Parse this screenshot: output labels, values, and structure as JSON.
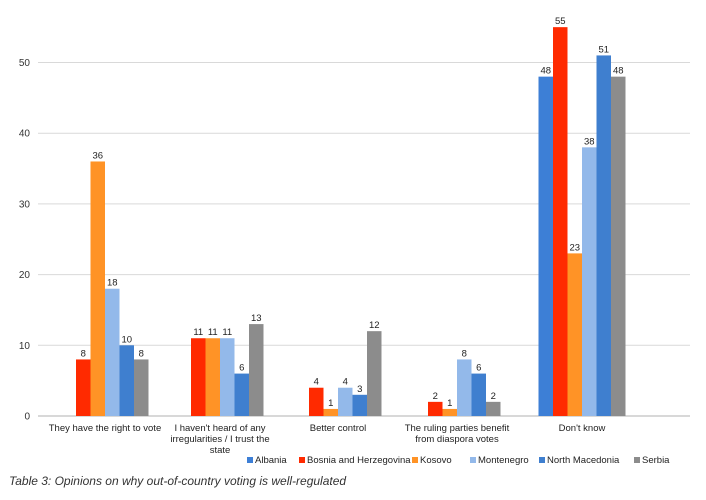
{
  "caption": "Table 3: Opinions on why out-of-country voting is well-regulated",
  "chart_data": {
    "type": "bar",
    "title": "",
    "xlabel": "",
    "ylabel": "",
    "ylim": [
      0,
      57
    ],
    "yticks": [
      0,
      10,
      20,
      30,
      40,
      50
    ],
    "grid": true,
    "legend_position": "bottom-right",
    "categories": [
      [
        "They have the right to vote"
      ],
      [
        "I haven't heard of any",
        "irregularities / I trust the",
        "state"
      ],
      [
        "Better control"
      ],
      [
        "The ruling parties benefit",
        "from diaspora votes"
      ],
      [
        "Don't know"
      ]
    ],
    "series": [
      {
        "name": "Albania",
        "color": "#3d7fd6",
        "values": [
          null,
          null,
          null,
          null,
          48
        ]
      },
      {
        "name": "Bosnia and Herzegovina",
        "color": "#ff2a00",
        "values": [
          8,
          11,
          4,
          2,
          55
        ]
      },
      {
        "name": "Kosovo",
        "color": "#ff9326",
        "values": [
          36,
          11,
          1,
          1,
          23
        ]
      },
      {
        "name": "Montenegro",
        "color": "#93b9ea",
        "values": [
          18,
          11,
          4,
          8,
          38
        ]
      },
      {
        "name": "North Macedonia",
        "color": "#3f7fcf",
        "values": [
          10,
          6,
          3,
          6,
          51
        ]
      },
      {
        "name": "Serbia",
        "color": "#8c8c8c",
        "values": [
          8,
          13,
          12,
          2,
          48
        ]
      }
    ]
  }
}
